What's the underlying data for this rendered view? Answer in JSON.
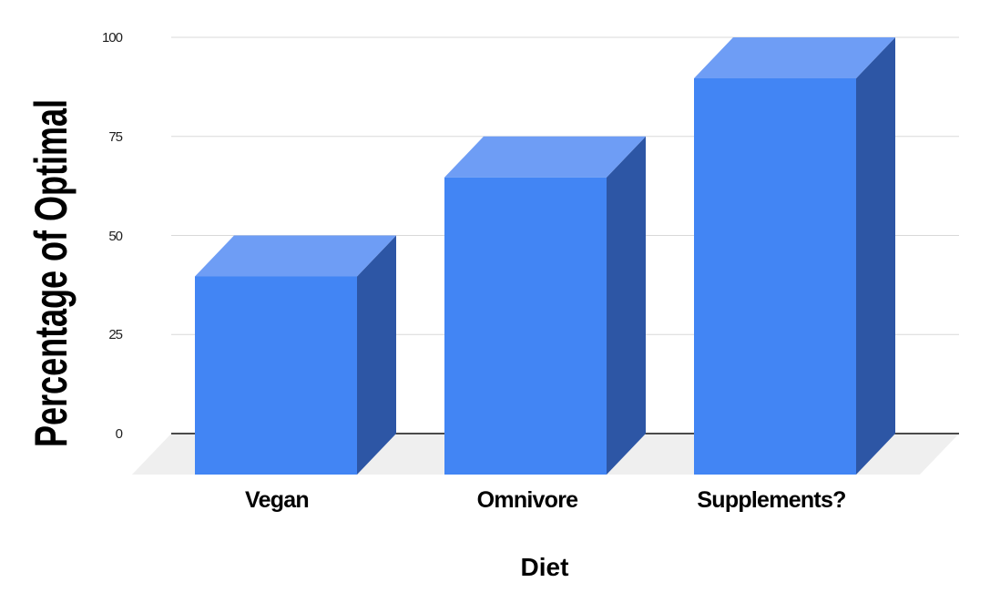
{
  "chart_data": {
    "type": "bar",
    "projection": "3d",
    "title": "",
    "categories": [
      "Vegan",
      "Omnivore",
      "Supplements?"
    ],
    "values": [
      50,
      75,
      100
    ],
    "xlabel": "Diet",
    "ylabel": "Percentage of Optimal",
    "ylim": [
      0,
      100
    ],
    "yticks": [
      0,
      25,
      50,
      75,
      100
    ],
    "grid": true,
    "legend": "none",
    "colors": {
      "bar_front": "#4285f4",
      "bar_top": "#6e9df5",
      "bar_side": "#2d56a5",
      "floor": "#efefef",
      "gridline": "#d9d9d9",
      "zero_line": "#111111",
      "text": "#000000",
      "background": "#ffffff"
    }
  }
}
